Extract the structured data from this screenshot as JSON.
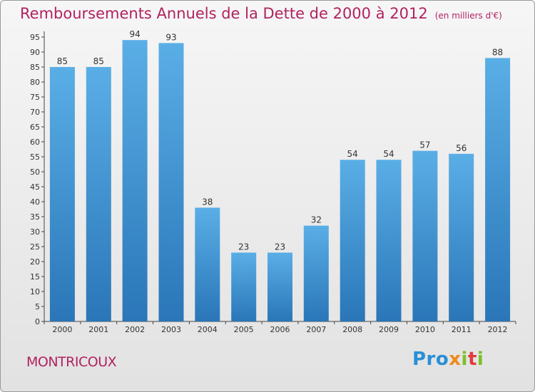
{
  "title": "Remboursements Annuels de la Dette de 2000 à 2012",
  "unit_note": "(en milliers d'€)",
  "place": "MONTRICOUX",
  "logo": {
    "p1": "Pro",
    "p2": "x",
    "p3": "i",
    "p4": "t",
    "p5": "i"
  },
  "colors": {
    "title": "#b1225f",
    "bar_top": "#5aaee6",
    "bar_bottom": "#2a76b8"
  },
  "chart_data": {
    "type": "bar",
    "title": "Remboursements Annuels de la Dette de 2000 à 2012",
    "xlabel": "",
    "ylabel": "",
    "categories": [
      "2000",
      "2001",
      "2002",
      "2003",
      "2004",
      "2005",
      "2006",
      "2007",
      "2008",
      "2009",
      "2010",
      "2011",
      "2012"
    ],
    "values": [
      85,
      85,
      94,
      93,
      38,
      23,
      23,
      32,
      54,
      54,
      57,
      56,
      88
    ],
    "ylim": [
      0,
      95
    ],
    "ytick_step": 5,
    "grid": false,
    "data_labels": true
  }
}
